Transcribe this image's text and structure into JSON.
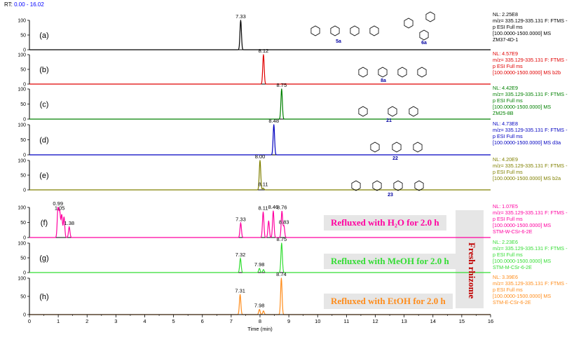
{
  "rt_label": {
    "prefix": "RT:",
    "range": "0.00 - 16.02"
  },
  "axis": {
    "xlabel": "Time (min)",
    "xlim": [
      0,
      16
    ],
    "ylim": [
      0,
      100
    ],
    "x_ticks": [
      0,
      1,
      2,
      3,
      4,
      5,
      6,
      7,
      8,
      9,
      10,
      11,
      12,
      13,
      14,
      15,
      16
    ],
    "y_ticks": [
      0,
      50,
      100
    ]
  },
  "fresh_label": "Fresh rhizome",
  "chart_data": [
    {
      "type": "line",
      "panel": "(a)",
      "color": "#000000",
      "peaks": [
        {
          "x": 7.33,
          "y": 100,
          "label": "7.33"
        }
      ],
      "structure_labels": [
        "5a",
        "6a"
      ],
      "info": [
        "NL: 2.25E8",
        "m/z= 335.129-335.131 F: FTMS -",
        "p ESI Full ms",
        "[100.0000-1500.0000]  MS",
        "ZM37-4D-1"
      ]
    },
    {
      "type": "line",
      "panel": "(b)",
      "color": "#e00000",
      "peaks": [
        {
          "x": 8.12,
          "y": 100,
          "label": "8.12"
        }
      ],
      "structure_labels": [
        "8a"
      ],
      "info": [
        "NL: 4.57E9",
        "m/z= 335.129-335.131 F: FTMS -",
        "p ESI Full ms",
        "[100.0000-1500.0000]  MS b2b"
      ]
    },
    {
      "type": "line",
      "panel": "(c)",
      "color": "#008000",
      "peaks": [
        {
          "x": 8.75,
          "y": 100,
          "label": "8.75"
        }
      ],
      "structure_labels": [
        "21"
      ],
      "info": [
        "NL: 4.42E9",
        "m/z= 335.129-335.131 F: FTMS -",
        "p ESI Full ms",
        "[100.0000-1500.0000]  MS",
        "ZM25-8B"
      ]
    },
    {
      "type": "line",
      "panel": "(d)",
      "color": "#0000c0",
      "peaks": [
        {
          "x": 8.48,
          "y": 100,
          "label": "8.48"
        }
      ],
      "structure_labels": [
        "22"
      ],
      "info": [
        "NL: 4.73E8",
        "m/z= 335.129-335.131 F: FTMS -",
        "p ESI Full ms",
        "[100.0000-1500.0000]  MS d3a"
      ]
    },
    {
      "type": "line",
      "panel": "(e)",
      "color": "#808000",
      "peaks": [
        {
          "x": 8.0,
          "y": 100,
          "label": "8.00"
        },
        {
          "x": 8.11,
          "y": 6,
          "label": "8.11"
        }
      ],
      "structure_labels": [
        "23"
      ],
      "info": [
        "NL: 4.20E9",
        "m/z= 335.129-335.131 F: FTMS -",
        "p ESI Full ms",
        "[100.0000-1500.0000]  MS b2a"
      ]
    },
    {
      "type": "line",
      "panel": "(f)",
      "color": "#ff00a0",
      "peaks": [
        {
          "x": 0.99,
          "y": 100,
          "label": "0.99"
        },
        {
          "x": 1.05,
          "y": 85,
          "label": "1.05"
        },
        {
          "x": 1.12,
          "y": 75,
          "label": ""
        },
        {
          "x": 1.2,
          "y": 68,
          "label": ""
        },
        {
          "x": 1.38,
          "y": 35,
          "label": "1.38"
        },
        {
          "x": 7.33,
          "y": 48,
          "label": "7.33"
        },
        {
          "x": 8.11,
          "y": 85,
          "label": "8.11"
        },
        {
          "x": 8.3,
          "y": 55,
          "label": ""
        },
        {
          "x": 8.46,
          "y": 88,
          "label": "8.46"
        },
        {
          "x": 8.76,
          "y": 87,
          "label": "8.76"
        },
        {
          "x": 8.83,
          "y": 38,
          "label": "8.83"
        }
      ],
      "condition": "Refluxed with H₂O for 2.0 h",
      "info": [
        "NL: 1.07E5",
        "m/z= 335.129-335.131 F: FTMS -",
        "p ESI Full ms",
        "[100.0000-1500.0000]  MS",
        "STM-W-CSr-6-2E"
      ]
    },
    {
      "type": "line",
      "panel": "(g)",
      "color": "#33dd33",
      "peaks": [
        {
          "x": 7.32,
          "y": 48,
          "label": "7.32"
        },
        {
          "x": 7.98,
          "y": 14,
          "label": "7.98"
        },
        {
          "x": 8.12,
          "y": 10,
          "label": ""
        },
        {
          "x": 8.75,
          "y": 100,
          "label": "8.75"
        }
      ],
      "condition": "Refluxed with MeOH for 2.0 h",
      "info": [
        "NL: 2.23E6",
        "m/z= 335.129-335.131 F: FTMS -",
        "p ESI Full ms",
        "[100.0000-1500.0000]  MS",
        "STM-M-CSr-6-2E"
      ]
    },
    {
      "type": "line",
      "panel": "(h)",
      "color": "#ff8c1a",
      "peaks": [
        {
          "x": 7.31,
          "y": 55,
          "label": "7.31"
        },
        {
          "x": 7.98,
          "y": 14,
          "label": "7.98"
        },
        {
          "x": 8.12,
          "y": 10,
          "label": ""
        },
        {
          "x": 8.74,
          "y": 100,
          "label": "8.74"
        }
      ],
      "condition": "Refluxed with EtOH for 2.0 h",
      "info": [
        "NL: 3.39E6",
        "m/z= 335.129-335.131 F: FTMS -",
        "p ESI Full ms",
        "[100.0000-1500.0000]  MS",
        "STM-E-CSr-6-2E"
      ]
    }
  ]
}
